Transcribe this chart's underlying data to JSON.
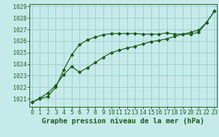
{
  "title": "Graphe pression niveau de la mer (hPa)",
  "xlabel_ticks": [
    0,
    1,
    2,
    3,
    4,
    5,
    6,
    7,
    8,
    9,
    10,
    11,
    12,
    13,
    14,
    15,
    16,
    17,
    18,
    19,
    20,
    21,
    22,
    23
  ],
  "ylim": [
    1020.3,
    1029.2
  ],
  "yticks": [
    1021,
    1022,
    1023,
    1024,
    1025,
    1026,
    1027,
    1028,
    1029
  ],
  "xlim": [
    -0.3,
    23.3
  ],
  "background_color": "#c6eaea",
  "grid_color": "#9ecece",
  "line_color": "#1a5c1a",
  "line1_x": [
    0,
    1,
    2,
    3,
    4,
    5,
    6,
    7,
    8,
    9,
    10,
    11,
    12,
    13,
    14,
    15,
    16,
    17,
    18,
    19,
    20,
    21,
    22,
    23
  ],
  "line1_y": [
    1020.7,
    1021.0,
    1021.2,
    1022.0,
    1023.5,
    1024.8,
    1025.7,
    1026.1,
    1026.35,
    1026.55,
    1026.65,
    1026.65,
    1026.65,
    1026.65,
    1026.6,
    1026.6,
    1026.6,
    1026.7,
    1026.6,
    1026.6,
    1026.6,
    1026.75,
    1027.6,
    1028.6
  ],
  "line2_x": [
    0,
    1,
    2,
    3,
    4,
    5,
    6,
    7,
    8,
    9,
    10,
    11,
    12,
    13,
    14,
    15,
    16,
    17,
    18,
    19,
    20,
    21,
    22,
    23
  ],
  "line2_y": [
    1020.7,
    1021.05,
    1021.5,
    1022.15,
    1023.1,
    1023.8,
    1023.3,
    1023.7,
    1024.15,
    1024.6,
    1025.0,
    1025.2,
    1025.4,
    1025.55,
    1025.75,
    1025.95,
    1026.05,
    1026.2,
    1026.4,
    1026.6,
    1026.75,
    1026.95,
    1027.6,
    1028.6
  ],
  "marker": "D",
  "marker_size": 2.0,
  "line_width": 0.9,
  "title_fontsize": 7.5,
  "tick_fontsize": 6.0
}
